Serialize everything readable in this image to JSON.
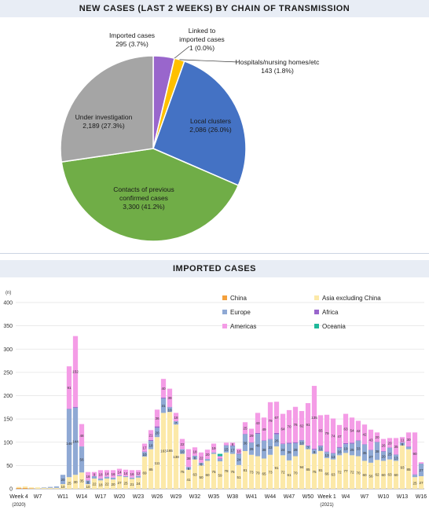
{
  "pie_section": {
    "title": "NEW CASES (LAST 2 WEEKS) BY CHAIN OF TRANSMISSION"
  },
  "bar_section": {
    "title": "IMPORTED CASES"
  },
  "chart_data": [
    {
      "type": "pie",
      "title": "NEW CASES (LAST 2 WEEKS) BY CHAIN OF TRANSMISSION",
      "slices": [
        {
          "name": "Imported cases",
          "value": 295,
          "label": "295 (3.7%)",
          "color": "#9966cc"
        },
        {
          "name": "Linked to imported cases",
          "value": 1,
          "label": "1 (0.0%)",
          "color": "#f2d23c"
        },
        {
          "name": "Hospitals/nursing homes/etc",
          "value": 143,
          "label": "143 (1.8%)",
          "color": "#ffc000"
        },
        {
          "name": "Local clusters",
          "value": 2086,
          "label": "2,086 (26.0%)",
          "color": "#4472c4"
        },
        {
          "name": "Contacts of previous confirmed cases",
          "value": 3300,
          "label": "3,300 (41.2%)",
          "color": "#70ad47"
        },
        {
          "name": "Under investigation",
          "value": 2189,
          "label": "2,189 (27.3%)",
          "color": "#a5a5a5"
        }
      ]
    },
    {
      "type": "bar",
      "stacked": true,
      "title": "IMPORTED CASES",
      "ylabel": "(n)",
      "ylim": [
        0,
        400
      ],
      "yticks": [
        0,
        50,
        100,
        150,
        200,
        250,
        300,
        350,
        400
      ],
      "grid": true,
      "legend_position": "top-right",
      "x_tick_labels": [
        {
          "i": 0,
          "text": "Week 4",
          "sub": "(2020)"
        },
        {
          "i": 3,
          "text": "W7"
        },
        {
          "i": 7,
          "text": "W11"
        },
        {
          "i": 10,
          "text": "W14"
        },
        {
          "i": 13,
          "text": "W17"
        },
        {
          "i": 16,
          "text": "W20"
        },
        {
          "i": 19,
          "text": "W23"
        },
        {
          "i": 22,
          "text": "W26"
        },
        {
          "i": 25,
          "text": "W29"
        },
        {
          "i": 28,
          "text": "W32"
        },
        {
          "i": 31,
          "text": "W35"
        },
        {
          "i": 34,
          "text": "W38"
        },
        {
          "i": 37,
          "text": "W41"
        },
        {
          "i": 40,
          "text": "W44"
        },
        {
          "i": 43,
          "text": "W47"
        },
        {
          "i": 46,
          "text": "W50"
        },
        {
          "i": 49,
          "text": "Week 1",
          "sub": "(2021)"
        },
        {
          "i": 52,
          "text": "W4"
        },
        {
          "i": 55,
          "text": "W7"
        },
        {
          "i": 58,
          "text": "W10"
        },
        {
          "i": 61,
          "text": "W13"
        },
        {
          "i": 64,
          "text": "W16"
        }
      ],
      "series": [
        {
          "name": "China",
          "color": "#f4a03c",
          "values": [
            2,
            2,
            1,
            0,
            0,
            0,
            0,
            0,
            0,
            0,
            0,
            0,
            0,
            0,
            0,
            0,
            0,
            0,
            0,
            0,
            0,
            0,
            0,
            0,
            0,
            0,
            0,
            0,
            0,
            0,
            0,
            0,
            0,
            0,
            0,
            0,
            0,
            0,
            0,
            0,
            0,
            0,
            0,
            0,
            0,
            0,
            0,
            0,
            0,
            0,
            0,
            0,
            0,
            0,
            0,
            0,
            0,
            0,
            0,
            0,
            0,
            0,
            0,
            0,
            0
          ]
        },
        {
          "name": "Asia excluding China",
          "color": "#fce9a8",
          "values": [
            2,
            3,
            2,
            3,
            2,
            2,
            2,
            10,
            25,
            30,
            35,
            10,
            22,
            18,
            22,
            20,
            27,
            25,
            21,
            24,
            69,
            85,
            111,
            163,
            165,
            138,
            75,
            41,
            63,
            50,
            60,
            75,
            59,
            78,
            75,
            51,
            81,
            73,
            70,
            65,
            73,
            91,
            72,
            61,
            70,
            94,
            85,
            75,
            81,
            66,
            63,
            72,
            77,
            72,
            70,
            60,
            56,
            62,
            60,
            63,
            60,
            93,
            85,
            25,
            27
          ]
        },
        {
          "name": "Europe",
          "color": "#8fa9d4",
          "values": [
            0,
            0,
            0,
            0,
            1,
            2,
            3,
            20,
            146,
            144,
            56,
            8,
            5,
            4,
            4,
            4,
            2,
            2,
            3,
            4,
            10,
            18,
            20,
            31,
            10,
            7,
            10,
            6,
            8,
            6,
            4,
            3,
            5,
            15,
            17,
            24,
            36,
            26,
            48,
            38,
            33,
            26,
            24,
            36,
            28,
            10,
            7,
            9,
            11,
            13,
            13,
            16,
            19,
            25,
            33,
            35,
            27,
            38,
            20,
            25,
            13,
            6,
            5,
            5,
            27
          ]
        },
        {
          "name": "Africa",
          "color": "#9966cc",
          "values": [
            0,
            0,
            0,
            0,
            0,
            0,
            0,
            0,
            1,
            2,
            0,
            0,
            0,
            0,
            0,
            0,
            0,
            0,
            0,
            0,
            1,
            2,
            3,
            2,
            1,
            0,
            0,
            0,
            0,
            0,
            0,
            0,
            1,
            1,
            1,
            1,
            1,
            1,
            2,
            1,
            1,
            3,
            1,
            2,
            2,
            1,
            1,
            2,
            1,
            1,
            1,
            2,
            2,
            2,
            1,
            1,
            1,
            1,
            1,
            1,
            1,
            1,
            1,
            1,
            0
          ]
        },
        {
          "name": "Americas",
          "color": "#f49ce6",
          "values": [
            0,
            0,
            0,
            0,
            0,
            0,
            0,
            0,
            91,
            152,
            48,
            18,
            9,
            18,
            14,
            16,
            14,
            14,
            16,
            12,
            17,
            21,
            36,
            40,
            39,
            18,
            22,
            38,
            18,
            22,
            20,
            19,
            5,
            5,
            6,
            10,
            25,
            29,
            43,
            49,
            79,
            67,
            64,
            70,
            76,
            62,
            91,
            135,
            65,
            79,
            74,
            47,
            63,
            54,
            42,
            42,
            43,
            20,
            26,
            20,
            35,
            11,
            30,
            90,
            3
          ]
        },
        {
          "name": "Oceania",
          "color": "#1fb89a",
          "values": [
            0,
            0,
            0,
            0,
            0,
            0,
            0,
            0,
            0,
            0,
            0,
            0,
            0,
            0,
            0,
            0,
            0,
            0,
            0,
            0,
            0,
            0,
            0,
            0,
            0,
            0,
            0,
            0,
            0,
            0,
            0,
            0,
            5,
            0,
            0,
            0,
            0,
            0,
            0,
            0,
            0,
            0,
            0,
            0,
            0,
            0,
            0,
            0,
            0,
            0,
            0,
            0,
            0,
            0,
            0,
            0,
            0,
            0,
            0,
            0,
            0,
            0,
            0,
            0,
            0
          ]
        }
      ]
    }
  ]
}
